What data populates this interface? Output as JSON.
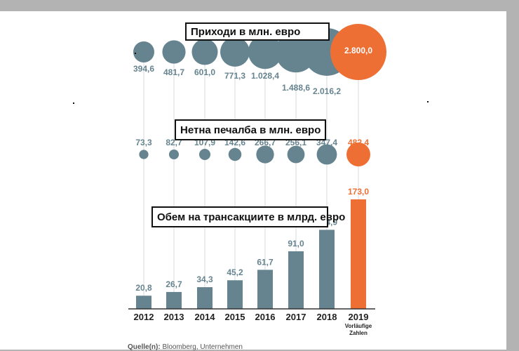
{
  "chart_data": [
    {
      "type": "scatter",
      "title": "Приходи в млн. евро",
      "categories": [
        "2012",
        "2013",
        "2014",
        "2015",
        "2016",
        "2017",
        "2018",
        "2019"
      ],
      "values": [
        394.6,
        481.7,
        601.0,
        771.3,
        1028.4,
        1488.6,
        2016.2,
        2800.0
      ],
      "labels": [
        "394,6",
        "481,7",
        "601,0",
        "771,3",
        "1.028,4",
        "1.488,6",
        "2.016,2",
        "2.800,0"
      ],
      "encoding": "circle-area"
    },
    {
      "type": "scatter",
      "title": "Нетна печалба в млн. евро",
      "categories": [
        "2012",
        "2013",
        "2014",
        "2015",
        "2016",
        "2017",
        "2018",
        "2019"
      ],
      "values": [
        73.3,
        82.7,
        107.9,
        142.6,
        266.7,
        256.1,
        347.4,
        482.4
      ],
      "labels": [
        "73,3",
        "82,7",
        "107,9",
        "142,6",
        "266,7",
        "256,1",
        "347,4",
        "482,4"
      ],
      "encoding": "circle-area"
    },
    {
      "type": "bar",
      "title": "Обем на трансакциите в млрд. евро",
      "categories": [
        "2012",
        "2013",
        "2014",
        "2015",
        "2016",
        "2017",
        "2018",
        "2019"
      ],
      "values": [
        20.8,
        26.7,
        34.3,
        45.2,
        61.7,
        91.0,
        124.9,
        173.0
      ],
      "labels": [
        "20,8",
        "26,7",
        "34,3",
        "45,2",
        "61,7",
        "91,0",
        "124,9",
        "173,0"
      ]
    }
  ],
  "x_labels": [
    "2012",
    "2013",
    "2014",
    "2015",
    "2016",
    "2017",
    "2018",
    "2019"
  ],
  "highlight_note": "Vorläufige Zahlen",
  "highlight_index": 7,
  "source_prefix": "Quelle(n):",
  "source_text": "Bloomberg, Unternehmen",
  "colors": {
    "base": "#66848f",
    "highlight": "#ee6f34",
    "gridline": "#d4d9dc",
    "baseline": "#333333"
  }
}
